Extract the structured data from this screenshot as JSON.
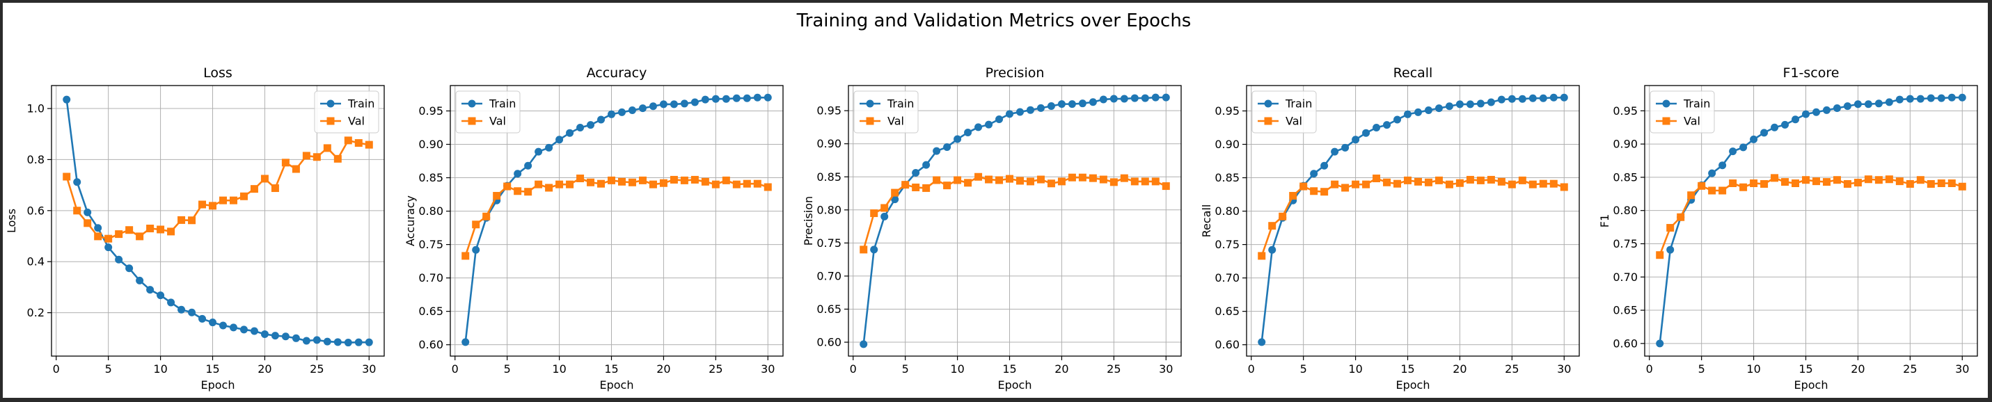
{
  "figure": {
    "title": "Training and Validation Metrics over Epochs"
  },
  "colors": {
    "train": "#1f77b4",
    "val": "#ff7f0e",
    "grid": "#b0b0b0",
    "axis": "#000000"
  },
  "chart_data": [
    {
      "type": "line",
      "title": "Loss",
      "xlabel": "Epoch",
      "ylabel": "Loss",
      "xlim": [
        -0.45,
        31.45
      ],
      "ylim": [
        0.03,
        1.09
      ],
      "xticks": [
        0,
        5,
        10,
        15,
        20,
        25,
        30
      ],
      "yticks": [
        0.2,
        0.4,
        0.6,
        0.8,
        1.0
      ],
      "ytick_labels": [
        "0.2",
        "0.4",
        "0.6",
        "0.8",
        "1.0"
      ],
      "grid": true,
      "legend": "top-right",
      "x": [
        1,
        2,
        3,
        4,
        5,
        6,
        7,
        8,
        9,
        10,
        11,
        12,
        13,
        14,
        15,
        16,
        17,
        18,
        19,
        20,
        21,
        22,
        23,
        24,
        25,
        26,
        27,
        28,
        29,
        30
      ],
      "series": [
        {
          "name": "Train",
          "marker": "circle",
          "values": [
            1.035,
            0.712,
            0.593,
            0.532,
            0.456,
            0.408,
            0.374,
            0.326,
            0.29,
            0.268,
            0.24,
            0.212,
            0.201,
            0.176,
            0.162,
            0.15,
            0.142,
            0.134,
            0.128,
            0.116,
            0.11,
            0.107,
            0.1,
            0.09,
            0.093,
            0.087,
            0.085,
            0.083,
            0.084,
            0.084
          ]
        },
        {
          "name": "Val",
          "marker": "square",
          "values": [
            0.733,
            0.6,
            0.551,
            0.499,
            0.49,
            0.508,
            0.524,
            0.499,
            0.53,
            0.526,
            0.518,
            0.563,
            0.562,
            0.624,
            0.619,
            0.64,
            0.64,
            0.656,
            0.685,
            0.725,
            0.688,
            0.788,
            0.763,
            0.815,
            0.81,
            0.845,
            0.803,
            0.875,
            0.865,
            0.858
          ]
        }
      ]
    },
    {
      "type": "line",
      "title": "Accuracy",
      "xlabel": "Epoch",
      "ylabel": "Accuracy",
      "xlim": [
        -0.45,
        31.45
      ],
      "ylim": [
        0.583,
        0.988
      ],
      "xticks": [
        0,
        5,
        10,
        15,
        20,
        25,
        30
      ],
      "yticks": [
        0.6,
        0.65,
        0.7,
        0.75,
        0.8,
        0.85,
        0.9,
        0.95
      ],
      "ytick_labels": [
        "0.60",
        "0.65",
        "0.70",
        "0.75",
        "0.80",
        "0.85",
        "0.90",
        "0.95"
      ],
      "grid": true,
      "legend": "top-left",
      "x": [
        1,
        2,
        3,
        4,
        5,
        6,
        7,
        8,
        9,
        10,
        11,
        12,
        13,
        14,
        15,
        16,
        17,
        18,
        19,
        20,
        21,
        22,
        23,
        24,
        25,
        26,
        27,
        28,
        29,
        30
      ],
      "series": [
        {
          "name": "Train",
          "marker": "circle",
          "values": [
            0.604,
            0.742,
            0.79,
            0.816,
            0.838,
            0.856,
            0.868,
            0.889,
            0.895,
            0.907,
            0.917,
            0.925,
            0.929,
            0.937,
            0.945,
            0.948,
            0.951,
            0.954,
            0.957,
            0.96,
            0.96,
            0.961,
            0.963,
            0.967,
            0.968,
            0.968,
            0.969,
            0.969,
            0.97,
            0.97
          ]
        },
        {
          "name": "Val",
          "marker": "square",
          "values": [
            0.733,
            0.78,
            0.792,
            0.823,
            0.837,
            0.83,
            0.829,
            0.84,
            0.835,
            0.84,
            0.84,
            0.849,
            0.843,
            0.841,
            0.846,
            0.844,
            0.843,
            0.846,
            0.84,
            0.842,
            0.847,
            0.846,
            0.847,
            0.844,
            0.84,
            0.846,
            0.84,
            0.841,
            0.841,
            0.836
          ]
        }
      ]
    },
    {
      "type": "line",
      "title": "Precision",
      "xlabel": "Epoch",
      "ylabel": "Precision",
      "xlim": [
        -0.45,
        31.45
      ],
      "ylim": [
        0.579,
        0.988
      ],
      "xticks": [
        0,
        5,
        10,
        15,
        20,
        25,
        30
      ],
      "yticks": [
        0.6,
        0.65,
        0.7,
        0.75,
        0.8,
        0.85,
        0.9,
        0.95
      ],
      "ytick_labels": [
        "0.60",
        "0.65",
        "0.70",
        "0.75",
        "0.80",
        "0.85",
        "0.90",
        "0.95"
      ],
      "grid": true,
      "legend": "top-left",
      "x": [
        1,
        2,
        3,
        4,
        5,
        6,
        7,
        8,
        9,
        10,
        11,
        12,
        13,
        14,
        15,
        16,
        17,
        18,
        19,
        20,
        21,
        22,
        23,
        24,
        25,
        26,
        27,
        28,
        29,
        30
      ],
      "series": [
        {
          "name": "Train",
          "marker": "circle",
          "values": [
            0.597,
            0.74,
            0.79,
            0.816,
            0.838,
            0.856,
            0.868,
            0.889,
            0.895,
            0.907,
            0.917,
            0.925,
            0.929,
            0.937,
            0.945,
            0.948,
            0.951,
            0.954,
            0.957,
            0.96,
            0.96,
            0.961,
            0.963,
            0.967,
            0.968,
            0.968,
            0.969,
            0.969,
            0.97,
            0.97
          ]
        },
        {
          "name": "Val",
          "marker": "square",
          "values": [
            0.74,
            0.795,
            0.803,
            0.826,
            0.838,
            0.834,
            0.833,
            0.845,
            0.837,
            0.845,
            0.841,
            0.85,
            0.846,
            0.845,
            0.847,
            0.844,
            0.843,
            0.846,
            0.84,
            0.843,
            0.849,
            0.849,
            0.848,
            0.846,
            0.842,
            0.848,
            0.843,
            0.843,
            0.843,
            0.836
          ]
        }
      ]
    },
    {
      "type": "line",
      "title": "Recall",
      "xlabel": "Epoch",
      "ylabel": "Recall",
      "xlim": [
        -0.45,
        31.45
      ],
      "ylim": [
        0.583,
        0.988
      ],
      "xticks": [
        0,
        5,
        10,
        15,
        20,
        25,
        30
      ],
      "yticks": [
        0.6,
        0.65,
        0.7,
        0.75,
        0.8,
        0.85,
        0.9,
        0.95
      ],
      "ytick_labels": [
        "0.60",
        "0.65",
        "0.70",
        "0.75",
        "0.80",
        "0.85",
        "0.90",
        "0.95"
      ],
      "grid": true,
      "legend": "top-left",
      "x": [
        1,
        2,
        3,
        4,
        5,
        6,
        7,
        8,
        9,
        10,
        11,
        12,
        13,
        14,
        15,
        16,
        17,
        18,
        19,
        20,
        21,
        22,
        23,
        24,
        25,
        26,
        27,
        28,
        29,
        30
      ],
      "series": [
        {
          "name": "Train",
          "marker": "circle",
          "values": [
            0.604,
            0.742,
            0.79,
            0.816,
            0.838,
            0.856,
            0.868,
            0.889,
            0.895,
            0.907,
            0.917,
            0.925,
            0.929,
            0.937,
            0.945,
            0.948,
            0.951,
            0.954,
            0.957,
            0.96,
            0.96,
            0.961,
            0.963,
            0.967,
            0.968,
            0.968,
            0.969,
            0.969,
            0.97,
            0.97
          ]
        },
        {
          "name": "Val",
          "marker": "square",
          "values": [
            0.733,
            0.778,
            0.792,
            0.823,
            0.837,
            0.83,
            0.829,
            0.84,
            0.835,
            0.84,
            0.84,
            0.849,
            0.843,
            0.841,
            0.846,
            0.844,
            0.843,
            0.846,
            0.84,
            0.842,
            0.847,
            0.846,
            0.847,
            0.844,
            0.84,
            0.846,
            0.84,
            0.841,
            0.841,
            0.836
          ]
        }
      ]
    },
    {
      "type": "line",
      "title": "F1-score",
      "xlabel": "Epoch",
      "ylabel": "F1",
      "xlim": [
        -0.45,
        31.45
      ],
      "ylim": [
        0.581,
        0.988
      ],
      "xticks": [
        0,
        5,
        10,
        15,
        20,
        25,
        30
      ],
      "yticks": [
        0.6,
        0.65,
        0.7,
        0.75,
        0.8,
        0.85,
        0.9,
        0.95
      ],
      "ytick_labels": [
        "0.60",
        "0.65",
        "0.70",
        "0.75",
        "0.80",
        "0.85",
        "0.90",
        "0.95"
      ],
      "grid": true,
      "legend": "top-left",
      "x": [
        1,
        2,
        3,
        4,
        5,
        6,
        7,
        8,
        9,
        10,
        11,
        12,
        13,
        14,
        15,
        16,
        17,
        18,
        19,
        20,
        21,
        22,
        23,
        24,
        25,
        26,
        27,
        28,
        29,
        30
      ],
      "series": [
        {
          "name": "Train",
          "marker": "circle",
          "values": [
            0.6,
            0.741,
            0.79,
            0.816,
            0.838,
            0.856,
            0.868,
            0.889,
            0.895,
            0.907,
            0.917,
            0.925,
            0.929,
            0.937,
            0.945,
            0.948,
            0.951,
            0.954,
            0.957,
            0.96,
            0.96,
            0.961,
            0.963,
            0.967,
            0.968,
            0.968,
            0.969,
            0.969,
            0.97,
            0.97
          ]
        },
        {
          "name": "Val",
          "marker": "square",
          "values": [
            0.733,
            0.774,
            0.79,
            0.823,
            0.837,
            0.83,
            0.83,
            0.841,
            0.835,
            0.841,
            0.84,
            0.849,
            0.843,
            0.841,
            0.846,
            0.844,
            0.843,
            0.846,
            0.84,
            0.842,
            0.847,
            0.846,
            0.847,
            0.844,
            0.84,
            0.846,
            0.84,
            0.841,
            0.841,
            0.836
          ]
        }
      ]
    }
  ]
}
